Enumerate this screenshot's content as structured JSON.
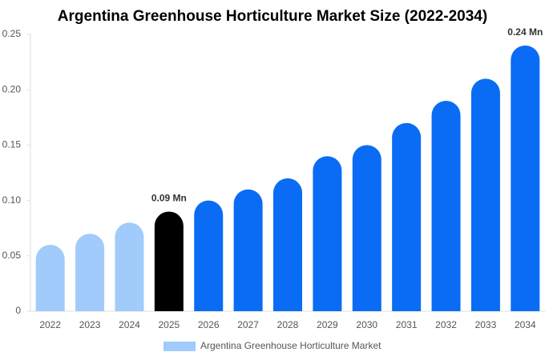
{
  "chart_data": {
    "type": "bar",
    "title": "Argentina Greenhouse Horticulture Market Size (2022-2034)",
    "categories": [
      "2022",
      "2023",
      "2024",
      "2025",
      "2026",
      "2027",
      "2028",
      "2029",
      "2030",
      "2031",
      "2032",
      "2033",
      "2034"
    ],
    "series": [
      {
        "name": "Argentina Greenhouse Horticulture Market",
        "color": "#a0cbfb",
        "values": [
          0.06,
          0.07,
          0.08,
          0.09,
          0.1,
          0.11,
          0.12,
          0.14,
          0.15,
          0.17,
          0.19,
          0.21,
          0.24
        ],
        "colors": [
          "#a0cbfb",
          "#a0cbfb",
          "#a0cbfb",
          "#000000",
          "#0a6cf5",
          "#0a6cf5",
          "#0a6cf5",
          "#0a6cf5",
          "#0a6cf5",
          "#0a6cf5",
          "#0a6cf5",
          "#0a6cf5",
          "#0a6cf5"
        ],
        "value_labels": [
          null,
          null,
          null,
          "0.09 Mn",
          null,
          null,
          null,
          null,
          null,
          null,
          null,
          null,
          "0.24 Mn"
        ]
      }
    ],
    "ylim": [
      0,
      0.25
    ],
    "yticks": [
      0,
      0.05,
      {
        "value": 0.1,
        "label": "0.10"
      },
      0.15,
      {
        "value": 0.2,
        "label": "0.20"
      },
      0.25
    ],
    "grid": false
  }
}
